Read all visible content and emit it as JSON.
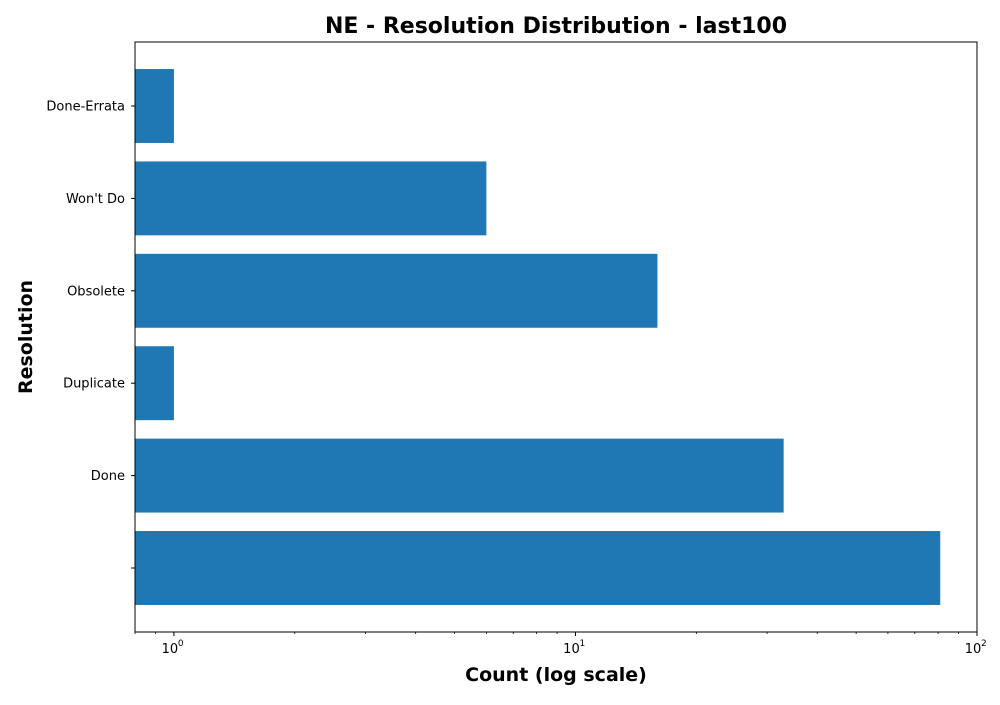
{
  "chart_data": {
    "type": "bar",
    "orientation": "horizontal",
    "title": "NE - Resolution Distribution - last100",
    "xlabel": "Count (log scale)",
    "ylabel": "Resolution",
    "x_scale": "log",
    "xlim": [
      0.8,
      100
    ],
    "x_ticks": [
      {
        "value": 1,
        "base": "10",
        "exp": "0"
      },
      {
        "value": 10,
        "base": "10",
        "exp": "1"
      },
      {
        "value": 100,
        "base": "10",
        "exp": "2"
      }
    ],
    "categories": [
      "",
      "Done",
      "Duplicate",
      "Obsolete",
      "Won't Do",
      "Done-Errata"
    ],
    "values": [
      81,
      33,
      1,
      16,
      6,
      1
    ],
    "bar_color": "#1f77b4",
    "grid": false,
    "legend": false
  }
}
